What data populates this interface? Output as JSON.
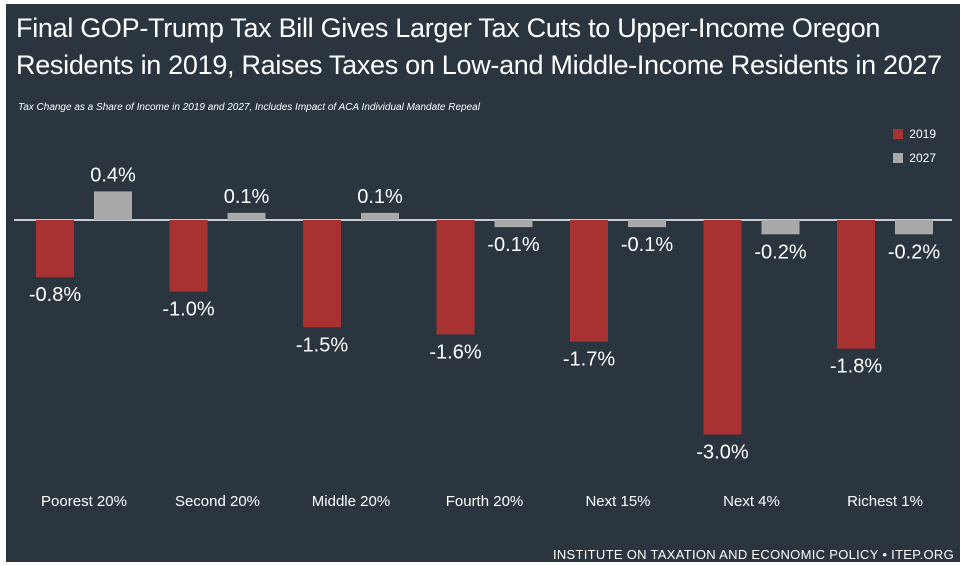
{
  "title_line1": "Final GOP-Trump Tax Bill Gives Larger Tax Cuts to Upper-Income Oregon",
  "title_line2": "Residents in 2019, Raises Taxes on Low-and Middle-Income Residents in 2027",
  "subtitle": "Tax Change as a Share of Income in 2019 and 2027, Includes Impact of ACA Individual Mandate Repeal",
  "source": "INSTITUTE ON TAXATION AND ECONOMIC POLICY • ITEP.ORG",
  "colors": {
    "background": "#2b3540",
    "series_2019": "#a83232",
    "series_2027": "#a9a9a9"
  },
  "chart_data": {
    "type": "bar",
    "categories": [
      "Poorest 20%",
      "Second 20%",
      "Middle 20%",
      "Fourth 20%",
      "Next 15%",
      "Next 4%",
      "Richest 1%"
    ],
    "series": [
      {
        "name": "2019",
        "values": [
          -0.8,
          -1.0,
          -1.5,
          -1.6,
          -1.7,
          -3.0,
          -1.8
        ],
        "labels": [
          "-0.8%",
          "-1.0%",
          "-1.5%",
          "-1.6%",
          "-1.7%",
          "-3.0%",
          "-1.8%"
        ],
        "color": "#a83232"
      },
      {
        "name": "2027",
        "values": [
          0.4,
          0.1,
          0.1,
          -0.1,
          -0.1,
          -0.2,
          -0.2
        ],
        "labels": [
          "0.4%",
          "0.1%",
          "0.1%",
          "-0.1%",
          "-0.1%",
          "-0.2%",
          "-0.2%"
        ],
        "color": "#a9a9a9"
      }
    ],
    "ylim": [
      -3.0,
      0.4
    ],
    "grid": false,
    "legend": "top-right"
  }
}
